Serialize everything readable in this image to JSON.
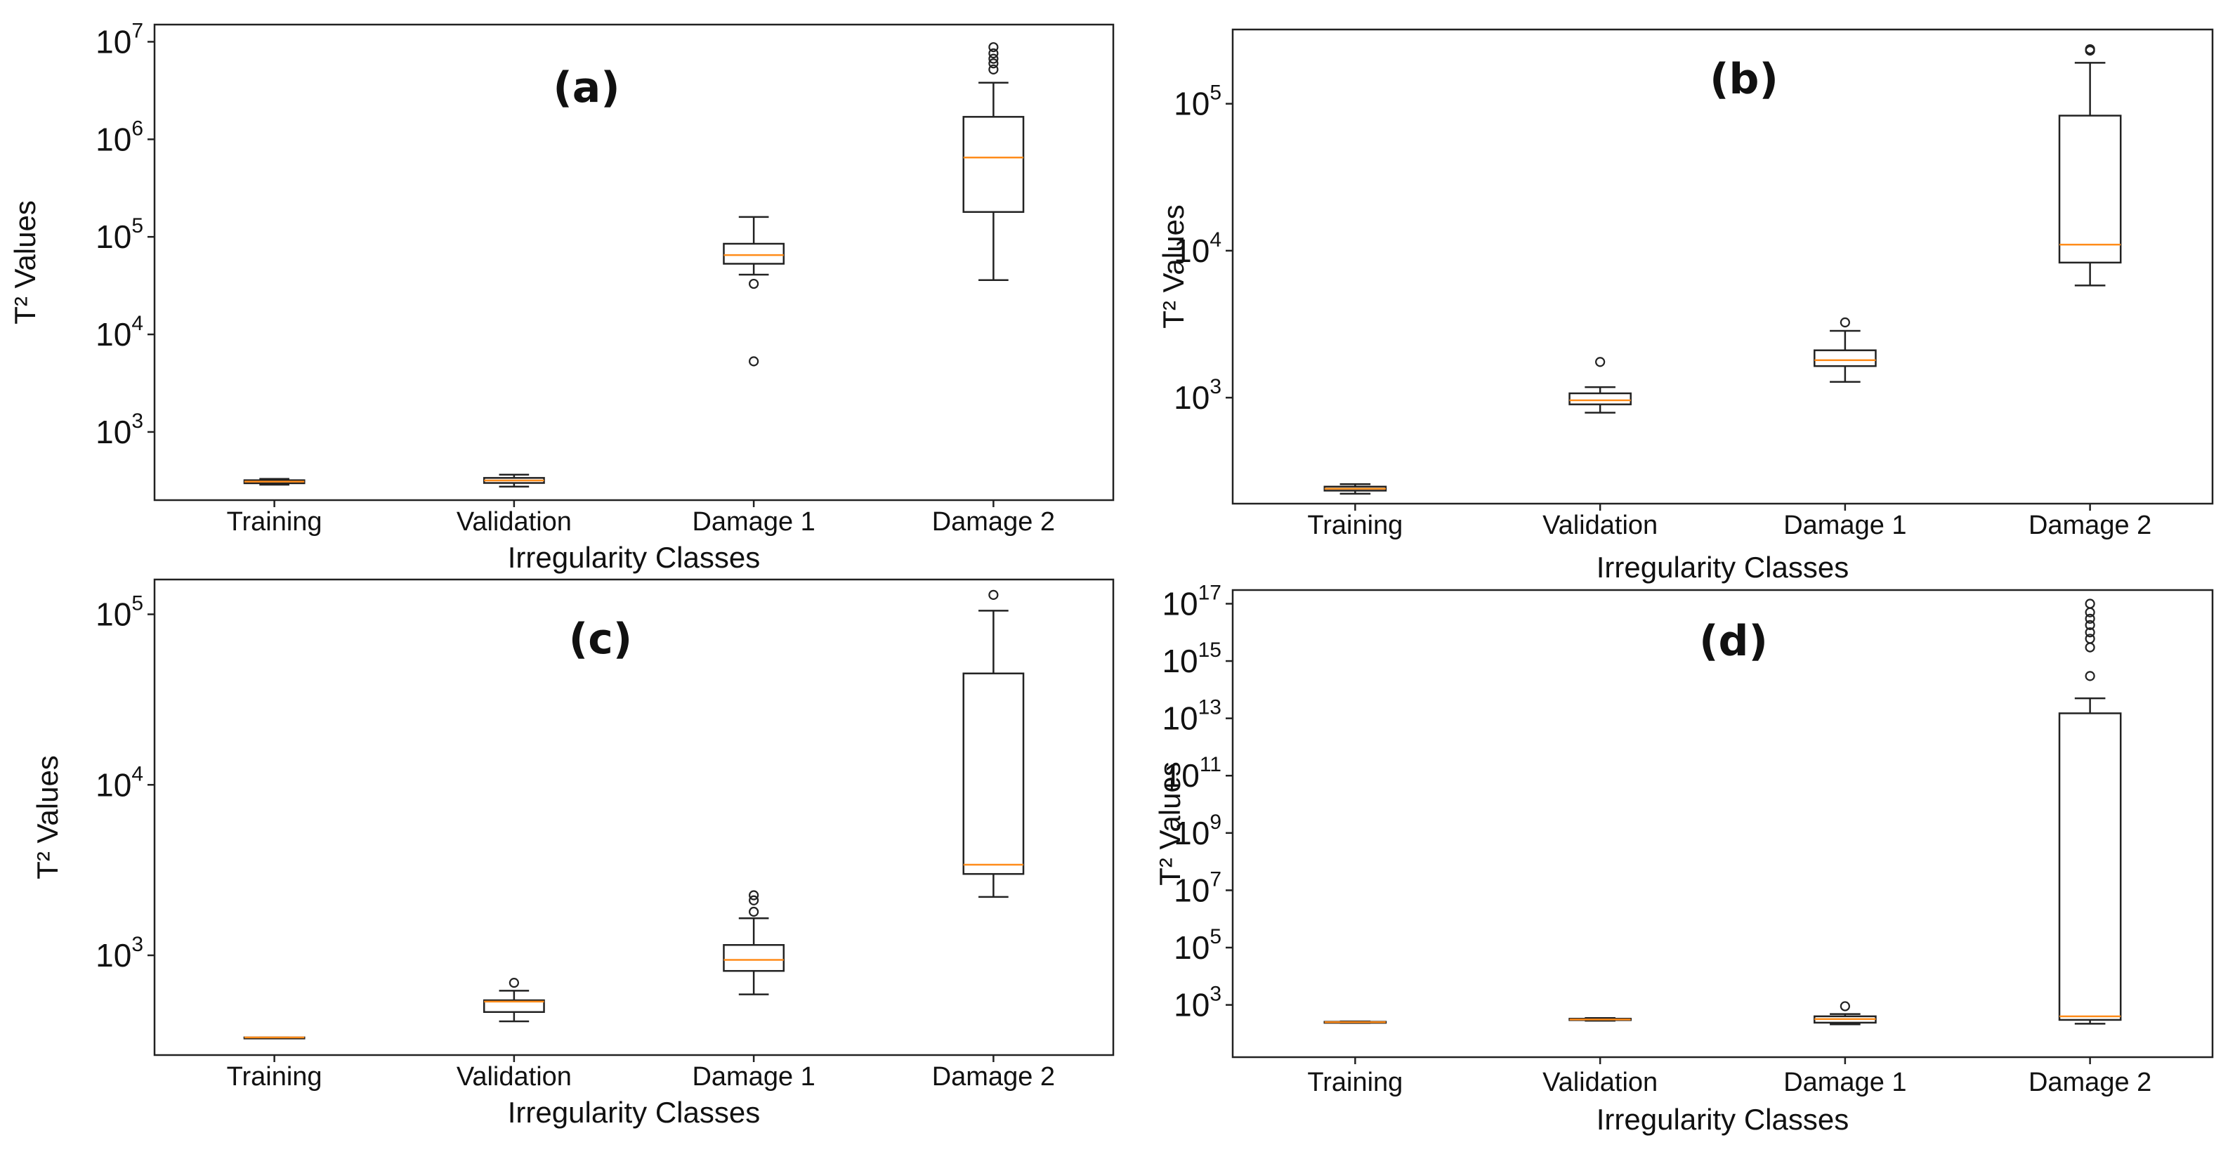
{
  "figure": {
    "shared": {
      "xlabel": "Irregularity Classes",
      "ylabel": "T² Values",
      "categories": [
        "Training",
        "Validation",
        "Damage 1",
        "Damage 2"
      ]
    },
    "colors": {
      "median": "#ff8c1a",
      "box": "#222222"
    }
  },
  "chart_data": [
    {
      "type": "boxplot",
      "panel_label": "(a)",
      "title": "",
      "xlabel": "Irregularity Classes",
      "ylabel": "T² Values",
      "yscale": "log",
      "ylim": [
        200,
        15000000
      ],
      "yticks": [
        {
          "base": "10",
          "exp": "3",
          "value": 1000
        },
        {
          "base": "10",
          "exp": "4",
          "value": 10000
        },
        {
          "base": "10",
          "exp": "5",
          "value": 100000
        },
        {
          "base": "10",
          "exp": "6",
          "value": 1000000
        },
        {
          "base": "10",
          "exp": "7",
          "value": 10000000
        }
      ],
      "categories": [
        "Training",
        "Validation",
        "Damage 1",
        "Damage 2"
      ],
      "boxes": [
        {
          "category": "Training",
          "whislo": 288,
          "q1": 298,
          "med": 310,
          "q3": 320,
          "whishi": 330,
          "fliers": []
        },
        {
          "category": "Validation",
          "whislo": 275,
          "q1": 300,
          "med": 318,
          "q3": 338,
          "whishi": 365,
          "fliers": []
        },
        {
          "category": "Damage 1",
          "whislo": 41000,
          "q1": 53000,
          "med": 65000,
          "q3": 85000,
          "whishi": 160000,
          "fliers": [
            33000,
            5300
          ]
        },
        {
          "category": "Damage 2",
          "whislo": 36000,
          "q1": 180000,
          "med": 650000,
          "q3": 1700000,
          "whishi": 3800000,
          "fliers": [
            5200000,
            6000000,
            6700000,
            7600000,
            8800000
          ]
        }
      ]
    },
    {
      "type": "boxplot",
      "panel_label": "(b)",
      "title": "",
      "xlabel": "Irregularity Classes",
      "ylabel": "T² Values",
      "yscale": "log",
      "ylim": [
        190,
        320000
      ],
      "yticks": [
        {
          "base": "10",
          "exp": "3",
          "value": 1000
        },
        {
          "base": "10",
          "exp": "4",
          "value": 10000
        },
        {
          "base": "10",
          "exp": "5",
          "value": 100000
        }
      ],
      "categories": [
        "Training",
        "Validation",
        "Damage 1",
        "Damage 2"
      ],
      "boxes": [
        {
          "category": "Training",
          "whislo": 222,
          "q1": 233,
          "med": 240,
          "q3": 248,
          "whishi": 258,
          "fliers": []
        },
        {
          "category": "Validation",
          "whislo": 790,
          "q1": 900,
          "med": 960,
          "q3": 1070,
          "whishi": 1180,
          "fliers": [
            1750
          ]
        },
        {
          "category": "Damage 1",
          "whislo": 1280,
          "q1": 1640,
          "med": 1800,
          "q3": 2100,
          "whishi": 2850,
          "fliers": [
            3250
          ]
        },
        {
          "category": "Damage 2",
          "whislo": 5800,
          "q1": 8300,
          "med": 11000,
          "q3": 83000,
          "whishi": 190000,
          "fliers": [
            230000,
            235000
          ]
        }
      ]
    },
    {
      "type": "boxplot",
      "panel_label": "(c)",
      "title": "",
      "xlabel": "Irregularity Classes",
      "ylabel": "T² Values",
      "yscale": "log",
      "ylim": [
        260,
        160000
      ],
      "yticks": [
        {
          "base": "10",
          "exp": "3",
          "value": 1000
        },
        {
          "base": "10",
          "exp": "4",
          "value": 10000
        },
        {
          "base": "10",
          "exp": "5",
          "value": 100000
        }
      ],
      "categories": [
        "Training",
        "Validation",
        "Damage 1",
        "Damage 2"
      ],
      "boxes": [
        {
          "category": "Training",
          "whislo": 330,
          "q1": 330,
          "med": 330,
          "q3": 330,
          "whishi": 330,
          "fliers": []
        },
        {
          "category": "Validation",
          "whislo": 410,
          "q1": 465,
          "med": 535,
          "q3": 545,
          "whishi": 620,
          "fliers": [
            690
          ]
        },
        {
          "category": "Damage 1",
          "whislo": 590,
          "q1": 810,
          "med": 940,
          "q3": 1150,
          "whishi": 1650,
          "fliers": [
            1800,
            2100,
            2250
          ]
        },
        {
          "category": "Damage 2",
          "whislo": 2200,
          "q1": 3000,
          "med": 3400,
          "q3": 45000,
          "whishi": 105000,
          "fliers": [
            130000
          ]
        }
      ]
    },
    {
      "type": "boxplot",
      "panel_label": "(d)",
      "title": "",
      "xlabel": "Irregularity Classes",
      "ylabel": "T² Values",
      "yscale": "log",
      "ylim": [
        15,
        300000000000000000
      ],
      "yticks": [
        {
          "base": "10",
          "exp": "3",
          "value": 1000
        },
        {
          "base": "10",
          "exp": "5",
          "value": 100000
        },
        {
          "base": "10",
          "exp": "7",
          "value": 10000000
        },
        {
          "base": "10",
          "exp": "9",
          "value": 1000000000
        },
        {
          "base": "10",
          "exp": "11",
          "value": 100000000000
        },
        {
          "base": "10",
          "exp": "13",
          "value": 10000000000000
        },
        {
          "base": "10",
          "exp": "15",
          "value": 1000000000000000
        },
        {
          "base": "10",
          "exp": "17",
          "value": 100000000000000000
        }
      ],
      "categories": [
        "Training",
        "Validation",
        "Damage 1",
        "Damage 2"
      ],
      "boxes": [
        {
          "category": "Training",
          "whislo": 235,
          "q1": 242,
          "med": 250,
          "q3": 258,
          "whishi": 265,
          "fliers": []
        },
        {
          "category": "Validation",
          "whislo": 280,
          "q1": 295,
          "med": 310,
          "q3": 330,
          "whishi": 350,
          "fliers": []
        },
        {
          "category": "Damage 1",
          "whislo": 210,
          "q1": 240,
          "med": 320,
          "q3": 400,
          "whishi": 480,
          "fliers": [
            900
          ]
        },
        {
          "category": "Damage 2",
          "whislo": 220,
          "q1": 300,
          "med": 400,
          "q3": 15000000000000,
          "whishi": 50000000000000,
          "fliers": [
            300000000000000,
            3000000000000000,
            6000000000000000,
            10000000000000000,
            18000000000000000,
            30000000000000000,
            50000000000000000,
            100000000000000000
          ]
        }
      ]
    }
  ]
}
